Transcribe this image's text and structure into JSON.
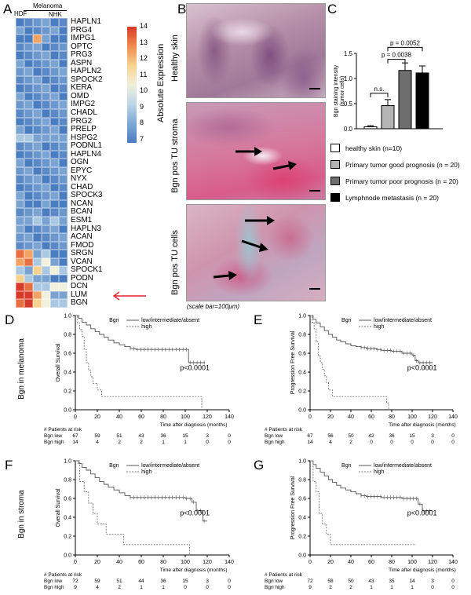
{
  "panels": {
    "A": "A",
    "B": "B",
    "C": "C",
    "D": "D",
    "E": "E",
    "F": "F",
    "G": "G"
  },
  "heatmap": {
    "group_labels": [
      "HDF",
      "Melanoma",
      "NHK"
    ],
    "genes": [
      "HAPLN1",
      "PRG4",
      "IMPG1",
      "OPTC",
      "PRG3",
      "ASPN",
      "HAPLN2",
      "SPOCK2",
      "KERA",
      "OMD",
      "IMPG2",
      "CHADL",
      "PRG2",
      "PRELP",
      "HSPG2",
      "PODNL1",
      "HAPLN4",
      "OGN",
      "EPYC",
      "NYX",
      "CHAD",
      "SPOCK3",
      "NCAN",
      "BCAN",
      "ESM1",
      "HAPLN3",
      "ACAN",
      "FMOD",
      "SRGN",
      "VCAN",
      "SPOCK1",
      "PODN",
      "DCN",
      "LUM",
      "BGN"
    ],
    "colorbar_title": "Absolute Expression",
    "colorbar_ticks": [
      "14",
      "13",
      "12",
      "11",
      "10",
      "9",
      "8",
      "7"
    ],
    "colors": {
      "low": "#4a7cc0",
      "mid": "#e8eef2",
      "high": "#e8442c"
    },
    "highlight_arrow_color": "#e8202a"
  },
  "micrographs": {
    "labels": [
      "Healthy skin",
      "Bgn pos TU stroma",
      "Bgn pos TU cells"
    ],
    "scale_note": "(scale bar=100µm)"
  },
  "chart_data": [
    {
      "type": "bar",
      "panel": "C",
      "ylabel": "Bgn staining intensity (tumor cells)",
      "ylim": [
        0,
        1.5
      ],
      "yticks": [
        "0.0",
        "0.5",
        "1.0",
        "1.5"
      ],
      "categories": [
        "healthy skin (n=10)",
        "Primary tumor good prognosis (n = 20)",
        "Primary tumor poor prognosis (n = 20)",
        "Lymphnode metastasis (n = 20)"
      ],
      "values": [
        0.04,
        0.46,
        1.16,
        1.11
      ],
      "errors": [
        0.02,
        0.12,
        0.15,
        0.14
      ],
      "fills": [
        "#ffffff",
        "#b4b4b4",
        "#6e6e6e",
        "#000000"
      ],
      "annotations": [
        "n.s.",
        "p = 0.0038",
        "p = 0.0052"
      ]
    },
    {
      "type": "line",
      "panel": "D",
      "row_label": "Bgn in melanoma",
      "ylabel": "Overall Survival",
      "xlabel": "Time after diagnosis (months)",
      "xticks": [
        "0",
        "20",
        "40",
        "60",
        "80",
        "100",
        "120",
        "140"
      ],
      "xlim": [
        0,
        140
      ],
      "yticks": [
        "0.0",
        "0.2",
        "0.4",
        "0.6",
        "0.8",
        "1.0"
      ],
      "ylim": [
        0,
        1
      ],
      "legend_title": "Bgn",
      "legend": [
        "low/intermediate/absent",
        "high"
      ],
      "pvalue": "p<0.0001",
      "series": [
        {
          "name": "low/intermediate/absent",
          "x": [
            0,
            3,
            6,
            10,
            14,
            18,
            22,
            26,
            30,
            35,
            40,
            45,
            50,
            55,
            60,
            65,
            70,
            75,
            80,
            85,
            90,
            95,
            100,
            103,
            106,
            110,
            113,
            118
          ],
          "y": [
            1,
            0.97,
            0.93,
            0.9,
            0.86,
            0.83,
            0.8,
            0.77,
            0.74,
            0.71,
            0.69,
            0.67,
            0.65,
            0.64,
            0.64,
            0.64,
            0.64,
            0.64,
            0.64,
            0.64,
            0.64,
            0.64,
            0.64,
            0.5,
            0.5,
            0.5,
            0.5,
            0.5
          ]
        },
        {
          "name": "high",
          "x": [
            0,
            2,
            4,
            6,
            8,
            10,
            12,
            14,
            16,
            20,
            24,
            36,
            48,
            60,
            72,
            84,
            96,
            108,
            115
          ],
          "y": [
            1,
            0.92,
            0.85,
            0.78,
            0.64,
            0.5,
            0.42,
            0.35,
            0.28,
            0.21,
            0.14,
            0.14,
            0.14,
            0.14,
            0.14,
            0.14,
            0.14,
            0.14,
            0
          ]
        }
      ],
      "risk_table": {
        "title": "# Patients at risk",
        "rows": [
          {
            "label": "Bgn low",
            "values": [
              "67",
              "59",
              "51",
              "43",
              "36",
              "15",
              "3",
              "0"
            ]
          },
          {
            "label": "Bgn high",
            "values": [
              "14",
              "4",
              "2",
              "2",
              "1",
              "1",
              "0",
              "0"
            ]
          }
        ]
      }
    },
    {
      "type": "line",
      "panel": "E",
      "ylabel": "Progression Free Survival",
      "xlabel": "Time after diagnosis (months)",
      "xticks": [
        "0",
        "20",
        "40",
        "60",
        "80",
        "100",
        "120",
        "140"
      ],
      "xlim": [
        0,
        140
      ],
      "yticks": [
        "0.0",
        "0.2",
        "0.4",
        "0.6",
        "0.8",
        "1.0"
      ],
      "ylim": [
        0,
        1
      ],
      "legend_title": "Bgn",
      "legend": [
        "low/intermediate/absent",
        "high"
      ],
      "pvalue": "p<0.0001",
      "series": [
        {
          "name": "low/intermediate/absent",
          "x": [
            0,
            3,
            6,
            10,
            14,
            18,
            22,
            26,
            30,
            35,
            40,
            45,
            50,
            55,
            60,
            65,
            70,
            80,
            90,
            100,
            103,
            106,
            110,
            115,
            120
          ],
          "y": [
            1,
            0.96,
            0.92,
            0.88,
            0.84,
            0.8,
            0.77,
            0.74,
            0.72,
            0.7,
            0.68,
            0.67,
            0.66,
            0.65,
            0.65,
            0.64,
            0.63,
            0.62,
            0.6,
            0.58,
            0.52,
            0.5,
            0.5,
            0.5,
            0.5
          ]
        },
        {
          "name": "high",
          "x": [
            0,
            2,
            4,
            6,
            8,
            10,
            12,
            14,
            16,
            18,
            22,
            28,
            40,
            55,
            70,
            75,
            77
          ],
          "y": [
            1,
            0.93,
            0.86,
            0.72,
            0.57,
            0.5,
            0.43,
            0.36,
            0.29,
            0.21,
            0.14,
            0.14,
            0.14,
            0.14,
            0.14,
            0.07,
            0
          ]
        }
      ],
      "risk_table": {
        "title": "# Patients at risk",
        "rows": [
          {
            "label": "Bgn low",
            "values": [
              "67",
              "56",
              "50",
              "42",
              "36",
              "15",
              "3",
              "0"
            ]
          },
          {
            "label": "Bgn high",
            "values": [
              "14",
              "4",
              "2",
              "0",
              "0",
              "0",
              "0",
              "0"
            ]
          }
        ]
      }
    },
    {
      "type": "line",
      "panel": "F",
      "row_label": "Bgn in stroma",
      "ylabel": "Overall Survival",
      "xlabel": "Time after diagnosis (months)",
      "xticks": [
        "0",
        "20",
        "40",
        "60",
        "80",
        "100",
        "120",
        "140"
      ],
      "xlim": [
        0,
        140
      ],
      "yticks": [
        "0.0",
        "0.2",
        "0.4",
        "0.6",
        "0.8",
        "1.0"
      ],
      "ylim": [
        0,
        1
      ],
      "legend_title": "Bgn",
      "legend": [
        "low/intermediate/absent",
        "high"
      ],
      "pvalue": "p<0.0001",
      "series": [
        {
          "name": "low/intermediate/absent",
          "x": [
            0,
            3,
            6,
            10,
            14,
            18,
            22,
            26,
            30,
            35,
            40,
            45,
            50,
            60,
            70,
            80,
            90,
            100,
            106,
            110,
            113,
            116,
            120
          ],
          "y": [
            1,
            0.97,
            0.93,
            0.9,
            0.86,
            0.82,
            0.78,
            0.75,
            0.72,
            0.69,
            0.66,
            0.63,
            0.61,
            0.61,
            0.61,
            0.61,
            0.61,
            0.6,
            0.56,
            0.47,
            0.47,
            0.36,
            0.36
          ]
        },
        {
          "name": "high",
          "x": [
            0,
            4,
            8,
            12,
            16,
            20,
            28,
            44,
            60,
            80,
            100,
            104
          ],
          "y": [
            1,
            0.78,
            0.67,
            0.55,
            0.44,
            0.33,
            0.22,
            0.11,
            0.11,
            0.11,
            0.11,
            0
          ]
        }
      ],
      "risk_table": {
        "title": "# Patients at risk",
        "rows": [
          {
            "label": "Bgn low",
            "values": [
              "72",
              "59",
              "51",
              "44",
              "36",
              "15",
              "3",
              "0"
            ]
          },
          {
            "label": "Bgn high",
            "values": [
              "9",
              "4",
              "2",
              "1",
              "1",
              "0",
              "0",
              "0"
            ]
          }
        ]
      }
    },
    {
      "type": "line",
      "panel": "G",
      "ylabel": "Progression Free Survival",
      "xlabel": "Time after diagnosis (months)",
      "xticks": [
        "0",
        "20",
        "40",
        "60",
        "80",
        "100",
        "120",
        "140"
      ],
      "xlim": [
        0,
        140
      ],
      "yticks": [
        "0.0",
        "0.2",
        "0.4",
        "0.6",
        "0.8",
        "1.0"
      ],
      "ylim": [
        0,
        1
      ],
      "legend_title": "Bgn",
      "legend": [
        "low/intermediate/absent",
        "high"
      ],
      "pvalue": "p<0.0001",
      "series": [
        {
          "name": "low/intermediate/absent",
          "x": [
            0,
            3,
            6,
            10,
            14,
            18,
            22,
            26,
            30,
            35,
            40,
            45,
            50,
            55,
            60,
            70,
            80,
            90,
            100,
            106,
            110,
            115,
            120
          ],
          "y": [
            1,
            0.96,
            0.92,
            0.88,
            0.84,
            0.8,
            0.77,
            0.74,
            0.71,
            0.69,
            0.67,
            0.65,
            0.63,
            0.62,
            0.62,
            0.61,
            0.61,
            0.6,
            0.6,
            0.54,
            0.47,
            0.47,
            0.47
          ]
        },
        {
          "name": "high",
          "x": [
            0,
            3,
            6,
            9,
            12,
            16,
            20,
            30,
            45,
            60,
            80,
            100,
            104
          ],
          "y": [
            1,
            0.78,
            0.67,
            0.44,
            0.33,
            0.22,
            0.11,
            0.11,
            0.11,
            0.11,
            0.11,
            0.11,
            0.11
          ]
        }
      ],
      "risk_table": {
        "title": "# Patients at risk",
        "rows": [
          {
            "label": "Bgn low",
            "values": [
              "72",
              "58",
              "50",
              "43",
              "35",
              "14",
              "3",
              "0"
            ]
          },
          {
            "label": "Bgn high",
            "values": [
              "9",
              "2",
              "2",
              "1",
              "1",
              "1",
              "0",
              "0"
            ]
          }
        ]
      }
    }
  ]
}
